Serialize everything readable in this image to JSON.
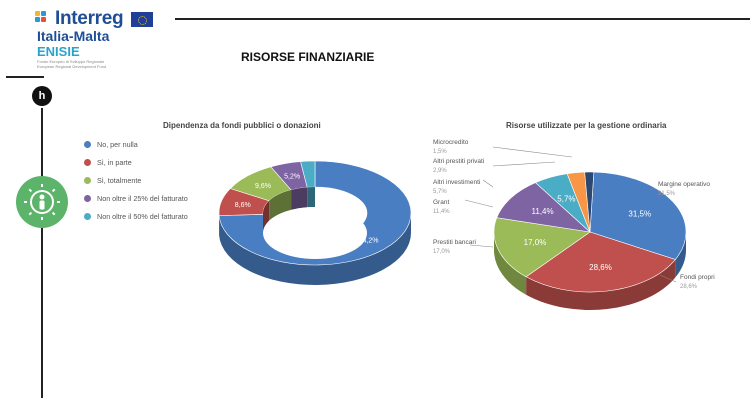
{
  "logo": {
    "brand": "Interreg",
    "program": "Italia-Malta",
    "project": "ENISIE",
    "fine_print": "Fondo Europeo di Sviluppo Regionale\nEuropean Regional Development Fund"
  },
  "header": {
    "badge": "h",
    "title": "RISORSE FINANZIARIE"
  },
  "colors": {
    "blue": "#4a7ec2",
    "red": "#c0504d",
    "green": "#9bbb59",
    "purple": "#7f64a3",
    "cyan": "#4bacc6",
    "orange": "#f79646",
    "navy": "#2c4770",
    "darkred": "#8b2a27",
    "accent_green": "#5cb46a"
  },
  "chart_data": [
    {
      "type": "pie",
      "title": "Dipendenza da fondi pubblici o donazioni",
      "style": "donut-3d",
      "categories": [
        "No, per nulla",
        "Sì, in parte",
        "Sì, totalmente",
        "Non oltre il 25% del fatturato",
        "Non oltre il 50% del fatturato"
      ],
      "values": [
        74.2,
        8.6,
        9.6,
        5.2,
        2.4
      ],
      "data_labels": [
        "74,2%",
        "8,6%",
        "9,6%",
        "5,2%",
        ""
      ],
      "colors": [
        "#4a7ec2",
        "#c0504d",
        "#9bbb59",
        "#7f64a3",
        "#4bacc6"
      ],
      "legend": "left"
    },
    {
      "type": "pie",
      "title": "Risorse utilizzate per la gestione ordinaria",
      "style": "pie-3d",
      "categories": [
        "Margine operativo",
        "Fondi propri",
        "Prestiti bancari",
        "Grant",
        "Altri investimenti",
        "Altri prestiti privati",
        "Microcredito"
      ],
      "values": [
        31.5,
        28.6,
        17.0,
        11.4,
        5.7,
        2.9,
        1.5
      ],
      "data_labels": [
        "31,5%",
        "28,6%",
        "17,0%",
        "11,4%",
        "5,7%",
        "",
        ""
      ],
      "callout_values": [
        "31,5%",
        "28,6%",
        "17,0%",
        "11,4%",
        "5,7%",
        "2,9%",
        "1,5%"
      ],
      "colors": [
        "#4a7ec2",
        "#c0504d",
        "#9bbb59",
        "#7f64a3",
        "#4bacc6",
        "#f79646",
        "#2c4770"
      ],
      "legend": "callouts"
    }
  ]
}
